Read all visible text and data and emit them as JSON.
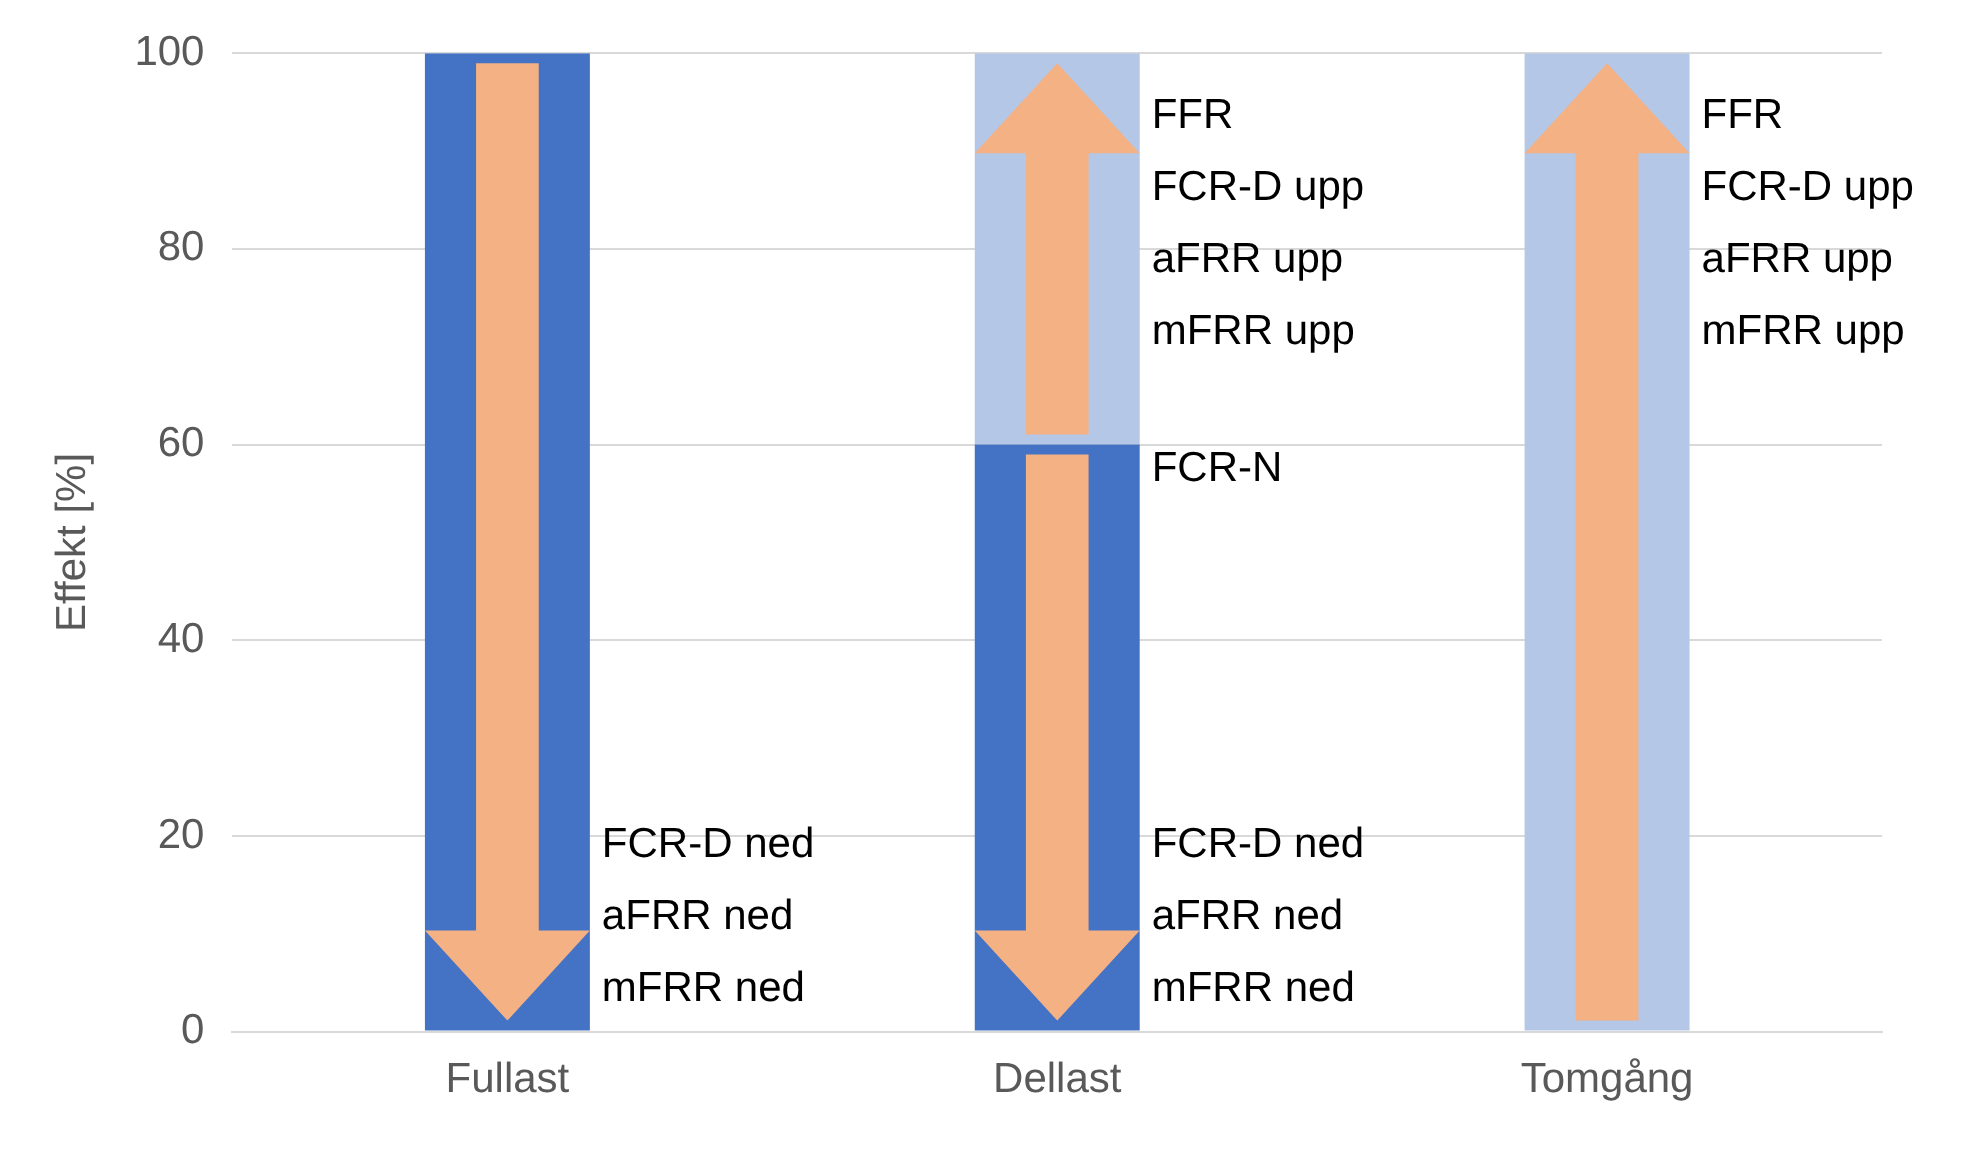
{
  "chart_data": {
    "type": "bar",
    "stacked": true,
    "ylabel": "Effekt [%]",
    "categories": [
      "Fullast",
      "Dellast",
      "Tomgång"
    ],
    "series": [
      {
        "color": "#4472c4",
        "values": [
          100,
          60,
          0
        ]
      },
      {
        "color": "#b4c7e7",
        "values": [
          0,
          40,
          100
        ]
      }
    ],
    "ylim": [
      0,
      100
    ],
    "yticks": [
      0,
      20,
      40,
      60,
      80,
      100
    ],
    "grid": "y",
    "legend": false,
    "annotations": [
      "FCR-D ned\naFRR ned\nmFRR ned",
      "FFR\nFCR-D upp\naFRR upp\nmFRR upp",
      "FCR-N",
      "FCR-D ned\naFRR ned\nmFRR ned",
      "FFR\nFCR-D upp\naFRR upp\nmFRR upp"
    ]
  }
}
